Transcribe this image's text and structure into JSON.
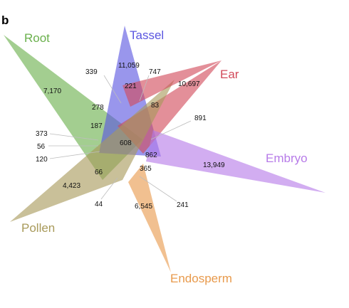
{
  "panel_label": "b",
  "sets": [
    {
      "name": "Root",
      "color": "#6ab04c"
    },
    {
      "name": "Tassel",
      "color": "#5a55e0"
    },
    {
      "name": "Ear",
      "color": "#d24a5a"
    },
    {
      "name": "Embryo",
      "color": "#b77be8"
    },
    {
      "name": "Endosperm",
      "color": "#e89a4c"
    },
    {
      "name": "Pollen",
      "color": "#a89a5a"
    }
  ],
  "counts": {
    "tassel_only": "11,059",
    "root_only": "7,170",
    "ear_only": "10,697",
    "embryo_only": "13,949",
    "endosperm_only": "6,545",
    "pollen_only": "4,423",
    "c339": "339",
    "c747": "747",
    "c221": "221",
    "c278": "278",
    "c83": "83",
    "c891": "891",
    "c187": "187",
    "c373": "373",
    "c56": "56",
    "c120": "120",
    "c608": "608",
    "c862": "862",
    "c365": "365",
    "c66": "66",
    "c44": "44",
    "c241": "241"
  }
}
